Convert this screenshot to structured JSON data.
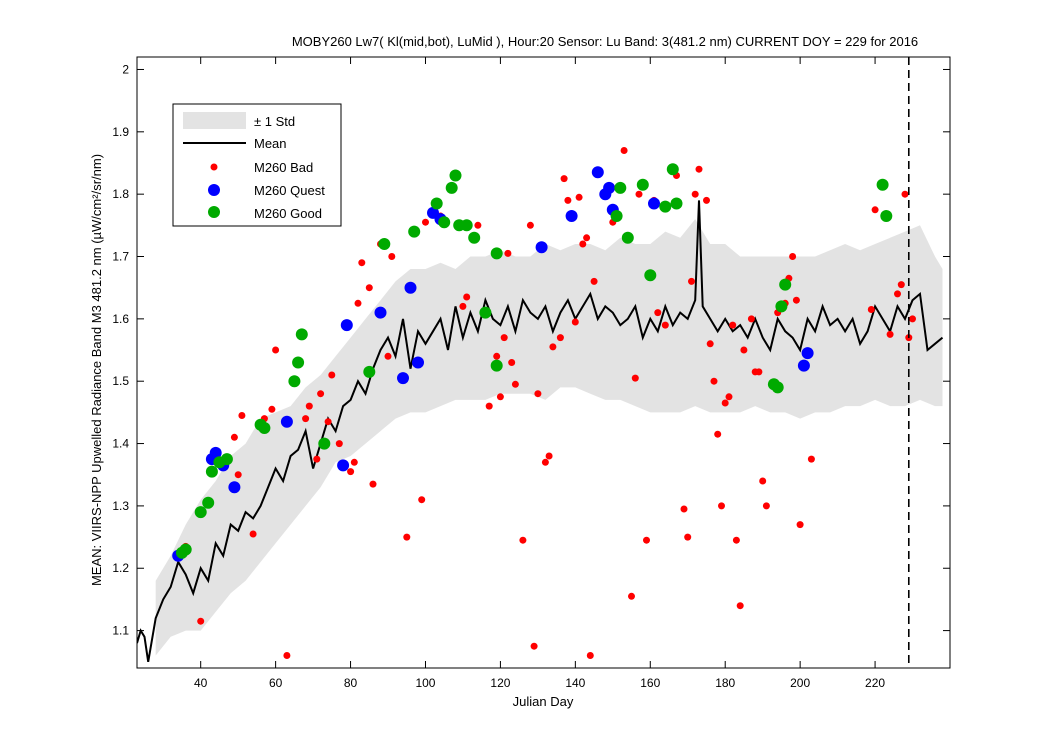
{
  "chart_data": {
    "type": "scatter",
    "title": "MOBY260   Lw7( Kl(mid,bot), LuMid ),   Hour:20 Sensor: Lu Band: 3(481.2 nm)   CURRENT DOY = 229 for 2016",
    "xlabel": "Julian Day",
    "ylabel": "MEAN: VIIRS-NPP Upwelled Radiance Band M3 481.2 nm (µW/cm²/sr/nm)",
    "xlim": [
      23,
      240
    ],
    "ylim": [
      1.04,
      2.02
    ],
    "xticks": [
      40,
      60,
      80,
      100,
      120,
      140,
      160,
      180,
      200,
      220
    ],
    "xtick_labels": [
      "40",
      "60",
      "80",
      "100",
      "120",
      "140",
      "160",
      "180",
      "200",
      "220"
    ],
    "yticks": [
      1.1,
      1.2,
      1.3,
      1.4,
      1.5,
      1.6,
      1.7,
      1.8,
      1.9,
      2.0
    ],
    "ytick_labels": [
      "1.1",
      "1.2",
      "1.3",
      "1.4",
      "1.5",
      "1.6",
      "1.7",
      "1.8",
      "1.9",
      "2"
    ],
    "current_doy": 229,
    "legend_position": "top-left",
    "legend": [
      "± 1 Std",
      "Mean",
      "M260 Bad",
      "M260 Quest",
      "M260 Good"
    ],
    "colors": {
      "std_band": "#e3e3e3",
      "mean": "#000000",
      "bad": "#ff0000",
      "quest": "#0000ff",
      "good": "#00aa00"
    },
    "mean": {
      "x": [
        23,
        24,
        25,
        26,
        28,
        30,
        32,
        34,
        36,
        38,
        40,
        42,
        44,
        46,
        48,
        50,
        52,
        54,
        56,
        58,
        60,
        62,
        64,
        66,
        68,
        70,
        72,
        74,
        76,
        78,
        80,
        82,
        84,
        86,
        88,
        90,
        92,
        94,
        96,
        98,
        100,
        102,
        104,
        106,
        108,
        110,
        112,
        114,
        116,
        118,
        120,
        122,
        124,
        126,
        128,
        130,
        132,
        134,
        136,
        138,
        140,
        142,
        144,
        146,
        148,
        150,
        152,
        154,
        156,
        158,
        160,
        162,
        164,
        166,
        168,
        170,
        172,
        173,
        174,
        176,
        178,
        180,
        182,
        184,
        186,
        188,
        190,
        192,
        194,
        196,
        198,
        200,
        202,
        204,
        206,
        208,
        210,
        212,
        214,
        216,
        218,
        220,
        222,
        224,
        226,
        228,
        230,
        232,
        234,
        236,
        238
      ],
      "y": [
        1.08,
        1.1,
        1.09,
        1.05,
        1.12,
        1.15,
        1.17,
        1.21,
        1.19,
        1.16,
        1.2,
        1.18,
        1.24,
        1.22,
        1.27,
        1.26,
        1.29,
        1.28,
        1.3,
        1.33,
        1.36,
        1.34,
        1.38,
        1.39,
        1.42,
        1.36,
        1.4,
        1.44,
        1.42,
        1.46,
        1.47,
        1.5,
        1.48,
        1.52,
        1.55,
        1.57,
        1.54,
        1.6,
        1.52,
        1.58,
        1.56,
        1.58,
        1.6,
        1.55,
        1.62,
        1.57,
        1.61,
        1.58,
        1.63,
        1.6,
        1.59,
        1.62,
        1.58,
        1.63,
        1.61,
        1.6,
        1.62,
        1.58,
        1.61,
        1.63,
        1.6,
        1.62,
        1.64,
        1.6,
        1.62,
        1.61,
        1.59,
        1.6,
        1.62,
        1.57,
        1.6,
        1.58,
        1.62,
        1.59,
        1.61,
        1.6,
        1.63,
        1.79,
        1.62,
        1.6,
        1.58,
        1.6,
        1.58,
        1.59,
        1.57,
        1.6,
        1.57,
        1.55,
        1.6,
        1.58,
        1.57,
        1.55,
        1.6,
        1.58,
        1.62,
        1.59,
        1.6,
        1.58,
        1.6,
        1.56,
        1.58,
        1.62,
        1.6,
        1.58,
        1.62,
        1.6,
        1.63,
        1.64,
        1.55,
        1.56,
        1.57
      ]
    },
    "std": {
      "x": [
        28,
        32,
        36,
        40,
        44,
        48,
        52,
        56,
        60,
        64,
        68,
        72,
        76,
        80,
        84,
        88,
        92,
        96,
        100,
        104,
        108,
        112,
        116,
        120,
        124,
        128,
        132,
        136,
        140,
        144,
        148,
        152,
        156,
        160,
        164,
        168,
        172,
        176,
        180,
        184,
        188,
        192,
        196,
        200,
        204,
        208,
        212,
        216,
        220,
        224,
        228,
        232,
        236,
        238
      ],
      "upper": [
        1.18,
        1.22,
        1.27,
        1.31,
        1.34,
        1.38,
        1.4,
        1.44,
        1.45,
        1.46,
        1.49,
        1.51,
        1.54,
        1.57,
        1.6,
        1.63,
        1.66,
        1.68,
        1.68,
        1.69,
        1.68,
        1.7,
        1.7,
        1.71,
        1.7,
        1.7,
        1.72,
        1.71,
        1.72,
        1.72,
        1.71,
        1.73,
        1.72,
        1.72,
        1.74,
        1.73,
        1.76,
        1.72,
        1.72,
        1.7,
        1.7,
        1.7,
        1.7,
        1.7,
        1.7,
        1.71,
        1.72,
        1.71,
        1.72,
        1.73,
        1.74,
        1.75,
        1.7,
        1.68
      ],
      "lower": [
        1.06,
        1.09,
        1.1,
        1.1,
        1.13,
        1.16,
        1.18,
        1.21,
        1.24,
        1.27,
        1.3,
        1.33,
        1.37,
        1.38,
        1.4,
        1.42,
        1.44,
        1.45,
        1.45,
        1.46,
        1.47,
        1.47,
        1.47,
        1.48,
        1.48,
        1.48,
        1.47,
        1.49,
        1.49,
        1.48,
        1.47,
        1.47,
        1.46,
        1.45,
        1.45,
        1.45,
        1.46,
        1.45,
        1.45,
        1.45,
        1.46,
        1.45,
        1.45,
        1.44,
        1.45,
        1.45,
        1.46,
        1.46,
        1.47,
        1.46,
        1.46,
        1.47,
        1.46,
        1.46
      ]
    },
    "series": [
      {
        "name": "M260 Bad",
        "points": [
          [
            36,
            1.235
          ],
          [
            40,
            1.115
          ],
          [
            49,
            1.41
          ],
          [
            50,
            1.35
          ],
          [
            51,
            1.445
          ],
          [
            54,
            1.255
          ],
          [
            57,
            1.44
          ],
          [
            59,
            1.455
          ],
          [
            60,
            1.55
          ],
          [
            63,
            1.06
          ],
          [
            68,
            1.44
          ],
          [
            69,
            1.46
          ],
          [
            71,
            1.375
          ],
          [
            72,
            1.48
          ],
          [
            74,
            1.435
          ],
          [
            75,
            1.51
          ],
          [
            77,
            1.4
          ],
          [
            80,
            1.355
          ],
          [
            81,
            1.37
          ],
          [
            82,
            1.625
          ],
          [
            83,
            1.69
          ],
          [
            85,
            1.65
          ],
          [
            86,
            1.335
          ],
          [
            88,
            1.72
          ],
          [
            90,
            1.54
          ],
          [
            91,
            1.7
          ],
          [
            95,
            1.25
          ],
          [
            99,
            1.31
          ],
          [
            100,
            1.755
          ],
          [
            104,
            1.765
          ],
          [
            110,
            1.62
          ],
          [
            111,
            1.635
          ],
          [
            114,
            1.75
          ],
          [
            117,
            1.46
          ],
          [
            119,
            1.54
          ],
          [
            120,
            1.475
          ],
          [
            121,
            1.57
          ],
          [
            122,
            1.705
          ],
          [
            123,
            1.53
          ],
          [
            124,
            1.495
          ],
          [
            126,
            1.245
          ],
          [
            128,
            1.75
          ],
          [
            129,
            1.075
          ],
          [
            130,
            1.48
          ],
          [
            132,
            1.37
          ],
          [
            133,
            1.38
          ],
          [
            134,
            1.555
          ],
          [
            136,
            1.57
          ],
          [
            137,
            1.825
          ],
          [
            138,
            1.79
          ],
          [
            140,
            1.595
          ],
          [
            141,
            1.795
          ],
          [
            142,
            1.72
          ],
          [
            143,
            1.73
          ],
          [
            144,
            1.06
          ],
          [
            145,
            1.66
          ],
          [
            150,
            1.755
          ],
          [
            153,
            1.87
          ],
          [
            155,
            1.155
          ],
          [
            156,
            1.505
          ],
          [
            157,
            1.8
          ],
          [
            159,
            1.245
          ],
          [
            161,
            1.79
          ],
          [
            162,
            1.61
          ],
          [
            164,
            1.59
          ],
          [
            167,
            1.83
          ],
          [
            169,
            1.295
          ],
          [
            170,
            1.25
          ],
          [
            171,
            1.66
          ],
          [
            172,
            1.8
          ],
          [
            173,
            1.84
          ],
          [
            175,
            1.79
          ],
          [
            176,
            1.56
          ],
          [
            177,
            1.5
          ],
          [
            178,
            1.415
          ],
          [
            179,
            1.3
          ],
          [
            180,
            1.465
          ],
          [
            181,
            1.475
          ],
          [
            182,
            1.59
          ],
          [
            183,
            1.245
          ],
          [
            184,
            1.14
          ],
          [
            185,
            1.55
          ],
          [
            187,
            1.6
          ],
          [
            188,
            1.515
          ],
          [
            189,
            1.515
          ],
          [
            190,
            1.34
          ],
          [
            191,
            1.3
          ],
          [
            194,
            1.61
          ],
          [
            196,
            1.625
          ],
          [
            197,
            1.665
          ],
          [
            198,
            1.7
          ],
          [
            199,
            1.63
          ],
          [
            200,
            1.27
          ],
          [
            203,
            1.375
          ],
          [
            219,
            1.615
          ],
          [
            220,
            1.775
          ],
          [
            224,
            1.575
          ],
          [
            226,
            1.64
          ],
          [
            227,
            1.655
          ],
          [
            228,
            1.8
          ],
          [
            229,
            1.57
          ],
          [
            230,
            1.6
          ]
        ]
      },
      {
        "name": "M260 Quest",
        "points": [
          [
            34,
            1.22
          ],
          [
            43,
            1.375
          ],
          [
            44,
            1.385
          ],
          [
            46,
            1.365
          ],
          [
            49,
            1.33
          ],
          [
            63,
            1.435
          ],
          [
            78,
            1.365
          ],
          [
            79,
            1.59
          ],
          [
            88,
            1.61
          ],
          [
            94,
            1.505
          ],
          [
            96,
            1.65
          ],
          [
            98,
            1.53
          ],
          [
            102,
            1.77
          ],
          [
            104,
            1.76
          ],
          [
            131,
            1.715
          ],
          [
            139,
            1.765
          ],
          [
            146,
            1.835
          ],
          [
            148,
            1.8
          ],
          [
            149,
            1.81
          ],
          [
            150,
            1.775
          ],
          [
            161,
            1.785
          ],
          [
            201,
            1.525
          ],
          [
            202,
            1.545
          ]
        ]
      },
      {
        "name": "M260 Good",
        "points": [
          [
            35,
            1.225
          ],
          [
            36,
            1.23
          ],
          [
            40,
            1.29
          ],
          [
            42,
            1.305
          ],
          [
            43,
            1.355
          ],
          [
            45,
            1.37
          ],
          [
            47,
            1.375
          ],
          [
            56,
            1.43
          ],
          [
            57,
            1.425
          ],
          [
            65,
            1.5
          ],
          [
            66,
            1.53
          ],
          [
            67,
            1.575
          ],
          [
            73,
            1.4
          ],
          [
            85,
            1.515
          ],
          [
            89,
            1.72
          ],
          [
            97,
            1.74
          ],
          [
            103,
            1.785
          ],
          [
            105,
            1.755
          ],
          [
            107,
            1.81
          ],
          [
            108,
            1.83
          ],
          [
            109,
            1.75
          ],
          [
            111,
            1.75
          ],
          [
            113,
            1.73
          ],
          [
            116,
            1.61
          ],
          [
            119,
            1.525
          ],
          [
            119,
            1.705
          ],
          [
            151,
            1.765
          ],
          [
            152,
            1.81
          ],
          [
            154,
            1.73
          ],
          [
            158,
            1.815
          ],
          [
            160,
            1.67
          ],
          [
            164,
            1.78
          ],
          [
            166,
            1.84
          ],
          [
            167,
            1.785
          ],
          [
            193,
            1.495
          ],
          [
            194,
            1.49
          ],
          [
            195,
            1.62
          ],
          [
            196,
            1.655
          ],
          [
            222,
            1.815
          ],
          [
            223,
            1.765
          ]
        ]
      }
    ]
  }
}
